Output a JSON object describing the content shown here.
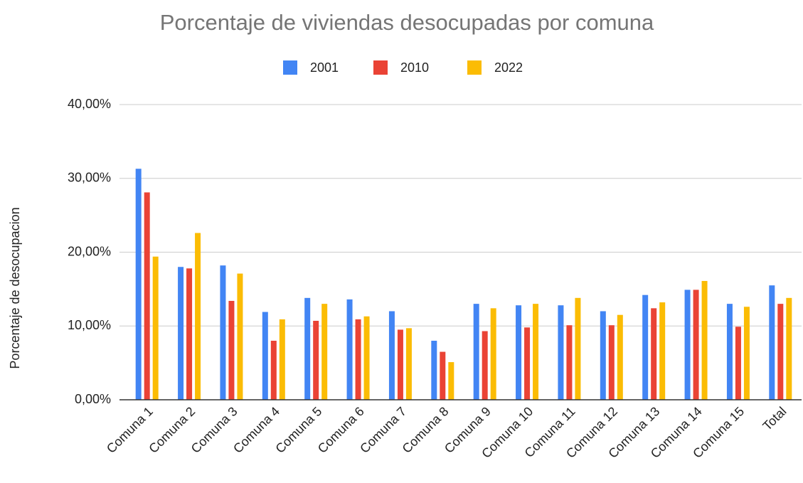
{
  "chart_data": {
    "type": "bar",
    "title": "Porcentaje de viviendas desocupadas por comuna",
    "y_label": "Porcentaje de desocupacion",
    "categories": [
      "Comuna 1",
      "Comuna 2",
      "Comuna 3",
      "Comuna 4",
      "Comuna 5",
      "Comuna 6",
      "Comuna 7",
      "Comuna 8",
      "Comuna 9",
      "Comuna 10",
      "Comuna 11",
      "Comuna 12",
      "Comuna 13",
      "Comuna 14",
      "Comuna 15",
      "Total"
    ],
    "series": [
      {
        "name": "2001",
        "color": "#4285f4",
        "values": [
          31.3,
          18.0,
          18.2,
          11.9,
          13.8,
          13.6,
          12.0,
          8.0,
          13.0,
          12.8,
          12.8,
          12.0,
          14.2,
          14.9,
          13.0,
          15.5
        ]
      },
      {
        "name": "2010",
        "color": "#ea4335",
        "values": [
          28.1,
          17.8,
          13.4,
          8.0,
          10.7,
          10.9,
          9.5,
          6.5,
          9.3,
          9.8,
          10.1,
          10.1,
          12.4,
          14.9,
          9.9,
          13.0
        ]
      },
      {
        "name": "2022",
        "color": "#fbbc04",
        "values": [
          19.4,
          22.6,
          17.1,
          10.9,
          13.0,
          11.3,
          9.7,
          5.1,
          12.4,
          13.0,
          13.8,
          11.5,
          13.2,
          16.1,
          12.6,
          13.8
        ]
      }
    ],
    "ylim": [
      0,
      40
    ],
    "yticks": [
      {
        "value": 0,
        "label": "0,00%"
      },
      {
        "value": 10,
        "label": "10,00%"
      },
      {
        "value": 20,
        "label": "20,00%"
      },
      {
        "value": 30,
        "label": "30,00%"
      },
      {
        "value": 40,
        "label": "40,00%"
      }
    ],
    "grid": true,
    "legend": "top"
  }
}
